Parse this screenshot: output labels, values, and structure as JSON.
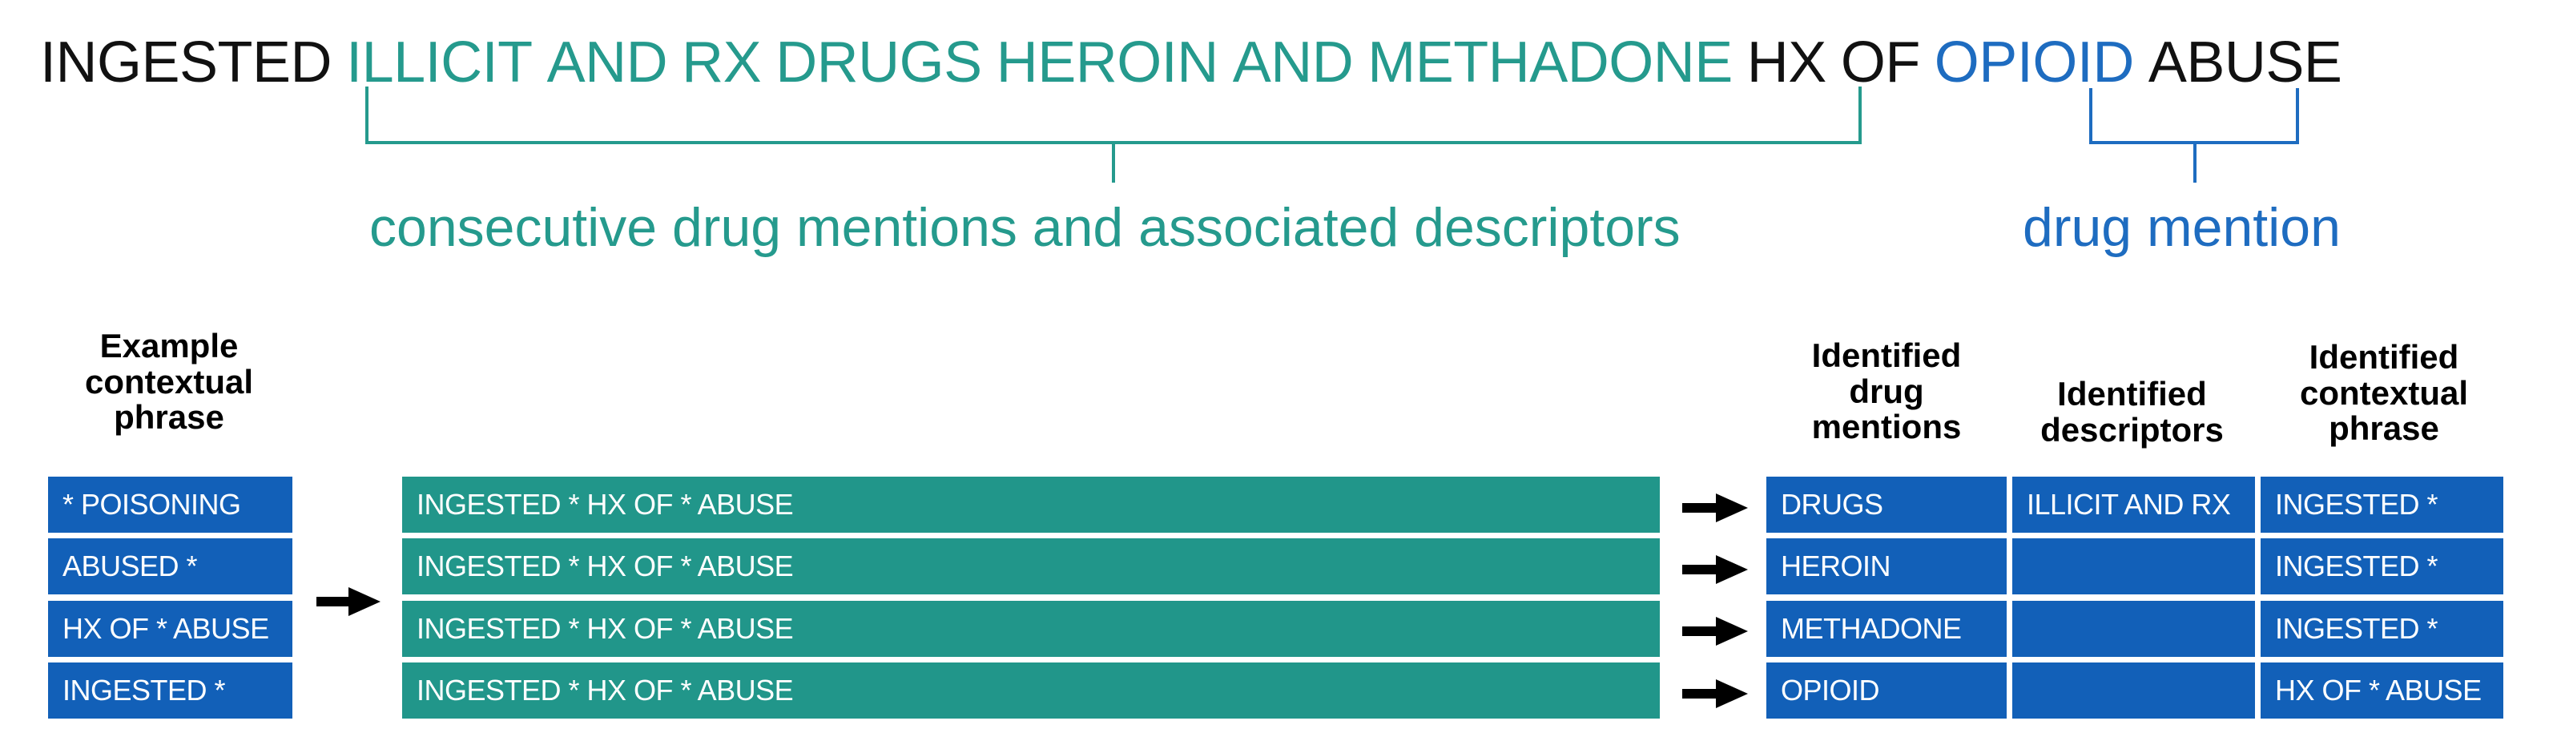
{
  "colors": {
    "teal": "#259a8d",
    "blue": "#1e6cc0",
    "cell_blue": "#1260b8",
    "cell_teal": "#21968a"
  },
  "sentence": [
    {
      "text": "INGESTED",
      "color": "black"
    },
    {
      "text": "ILLICIT",
      "color": "teal"
    },
    {
      "text": "AND",
      "color": "teal"
    },
    {
      "text": "RX",
      "color": "teal"
    },
    {
      "text": "DRUGS",
      "color": "teal"
    },
    {
      "text": "HEROIN",
      "color": "teal"
    },
    {
      "text": "AND",
      "color": "teal"
    },
    {
      "text": "METHADONE",
      "color": "teal"
    },
    {
      "text": "HX",
      "color": "black"
    },
    {
      "text": "OF",
      "color": "black"
    },
    {
      "text": "OPIOID",
      "color": "blue"
    },
    {
      "text": "ABUSE",
      "color": "black"
    }
  ],
  "brackets": {
    "consecutive_label": "consecutive drug mentions and associated descriptors",
    "single_label": "drug mention"
  },
  "headers": {
    "example": [
      "Example",
      "contextual",
      "phrase"
    ],
    "drug_mentions": [
      "Identified",
      "drug",
      "mentions"
    ],
    "descriptors": [
      "Identified",
      "descriptors"
    ],
    "contextual": [
      "Identified",
      "contextual",
      "phrase"
    ]
  },
  "example_phrases": [
    "* POISONING",
    "ABUSED *",
    "HX OF * ABUSE",
    "INGESTED *"
  ],
  "matched_phrases": [
    "INGESTED * HX OF * ABUSE",
    "INGESTED * HX OF * ABUSE",
    "INGESTED * HX OF * ABUSE",
    "INGESTED * HX OF * ABUSE"
  ],
  "results": [
    {
      "drug": "DRUGS",
      "descriptor": "ILLICIT AND RX",
      "context": "INGESTED *"
    },
    {
      "drug": "HEROIN",
      "descriptor": "",
      "context": "INGESTED *"
    },
    {
      "drug": "METHADONE",
      "descriptor": "",
      "context": "INGESTED *"
    },
    {
      "drug": "OPIOID",
      "descriptor": "",
      "context": "HX OF * ABUSE"
    }
  ],
  "arrows": {
    "input_arrow": "right-arrow-icon",
    "output_arrow": "right-arrow-icon"
  }
}
